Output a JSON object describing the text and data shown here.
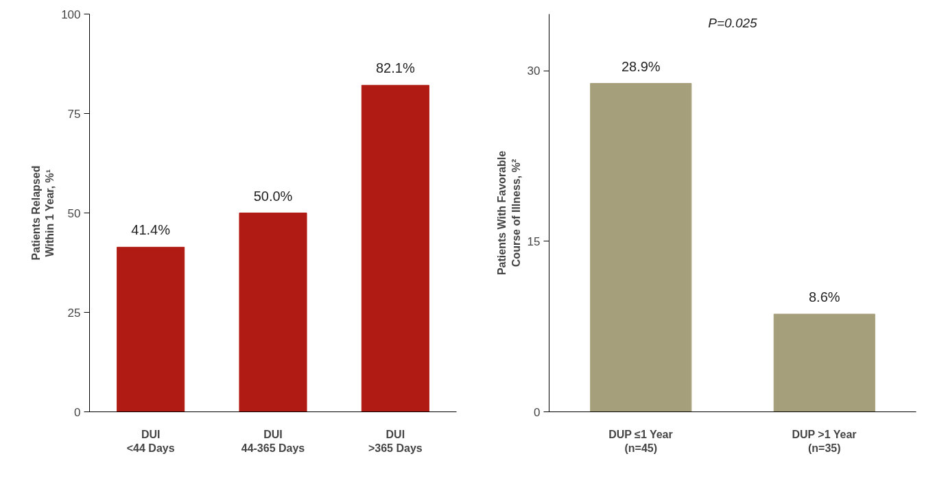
{
  "chart_data": [
    {
      "type": "bar",
      "ylabel": "Patients Relapsed\nWithin 1 Year, %¹",
      "categories": [
        "DUI\n<44 Days",
        "DUI\n44-365 Days",
        "DUI\n>365 Days"
      ],
      "values": [
        41.4,
        50.0,
        82.1
      ],
      "value_labels": [
        "41.4%",
        "50.0%",
        "82.1%"
      ],
      "color": "#b01c14",
      "ylim": [
        0,
        100
      ],
      "yticks": [
        0,
        25,
        50,
        75,
        100
      ],
      "grid": false
    },
    {
      "type": "bar",
      "ylabel": "Patients With Favorable\nCourse of Illness, %²",
      "categories": [
        "DUP ≤1 Year\n(n=45)",
        "DUP >1 Year\n(n=35)"
      ],
      "values": [
        28.9,
        8.6
      ],
      "value_labels": [
        "28.9%",
        "8.6%"
      ],
      "color": "#a69f7b",
      "ylim": [
        0,
        35
      ],
      "yticks": [
        0,
        15,
        30
      ],
      "grid": false,
      "annotations": [
        "P=0.025"
      ]
    }
  ]
}
